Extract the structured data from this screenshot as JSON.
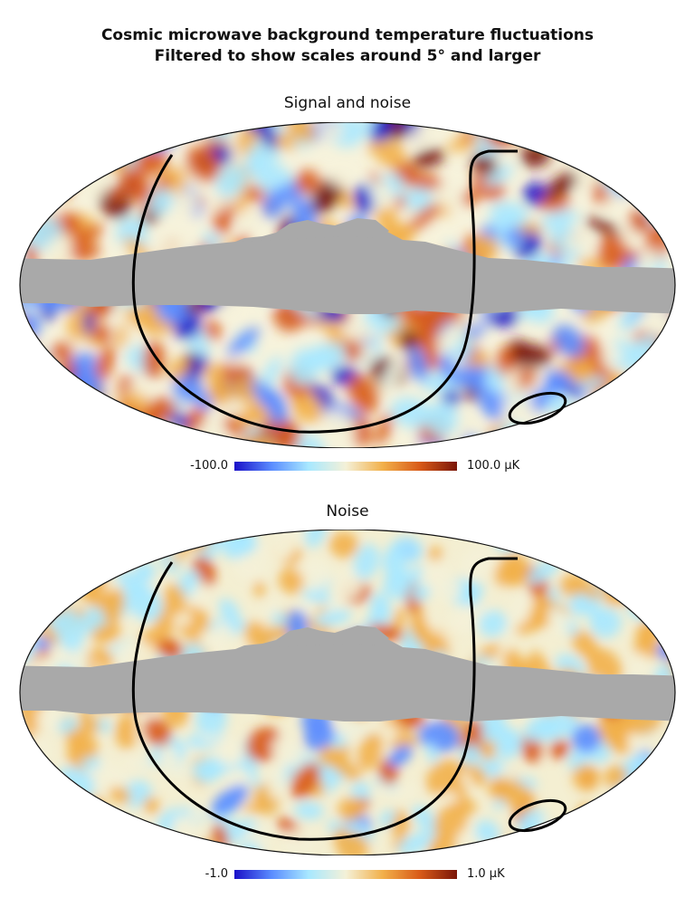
{
  "figure": {
    "title_line1": "Cosmic microwave background temperature fluctuations",
    "title_line2": "Filtered to show scales around 5° and larger"
  },
  "panels": [
    {
      "subtitle": "Signal and noise",
      "colorbar": {
        "min_label": "-100.0",
        "max_label": "100.0 μK"
      },
      "palette": [
        "#1a10c8",
        "#5a8cff",
        "#a8e8ff",
        "#f4f1d8",
        "#f2b04a",
        "#d85a18",
        "#7a1608"
      ],
      "projection": "mollweide",
      "mask_color": "#a9a9a9"
    },
    {
      "subtitle": "Noise",
      "colorbar": {
        "min_label": "-1.0",
        "max_label": "1.0 μK"
      },
      "palette": [
        "#1a10c8",
        "#5a8cff",
        "#a8e8ff",
        "#f4f1d8",
        "#f2b04a",
        "#d85a18",
        "#7a1608"
      ],
      "projection": "mollweide",
      "mask_color": "#a9a9a9"
    }
  ]
}
